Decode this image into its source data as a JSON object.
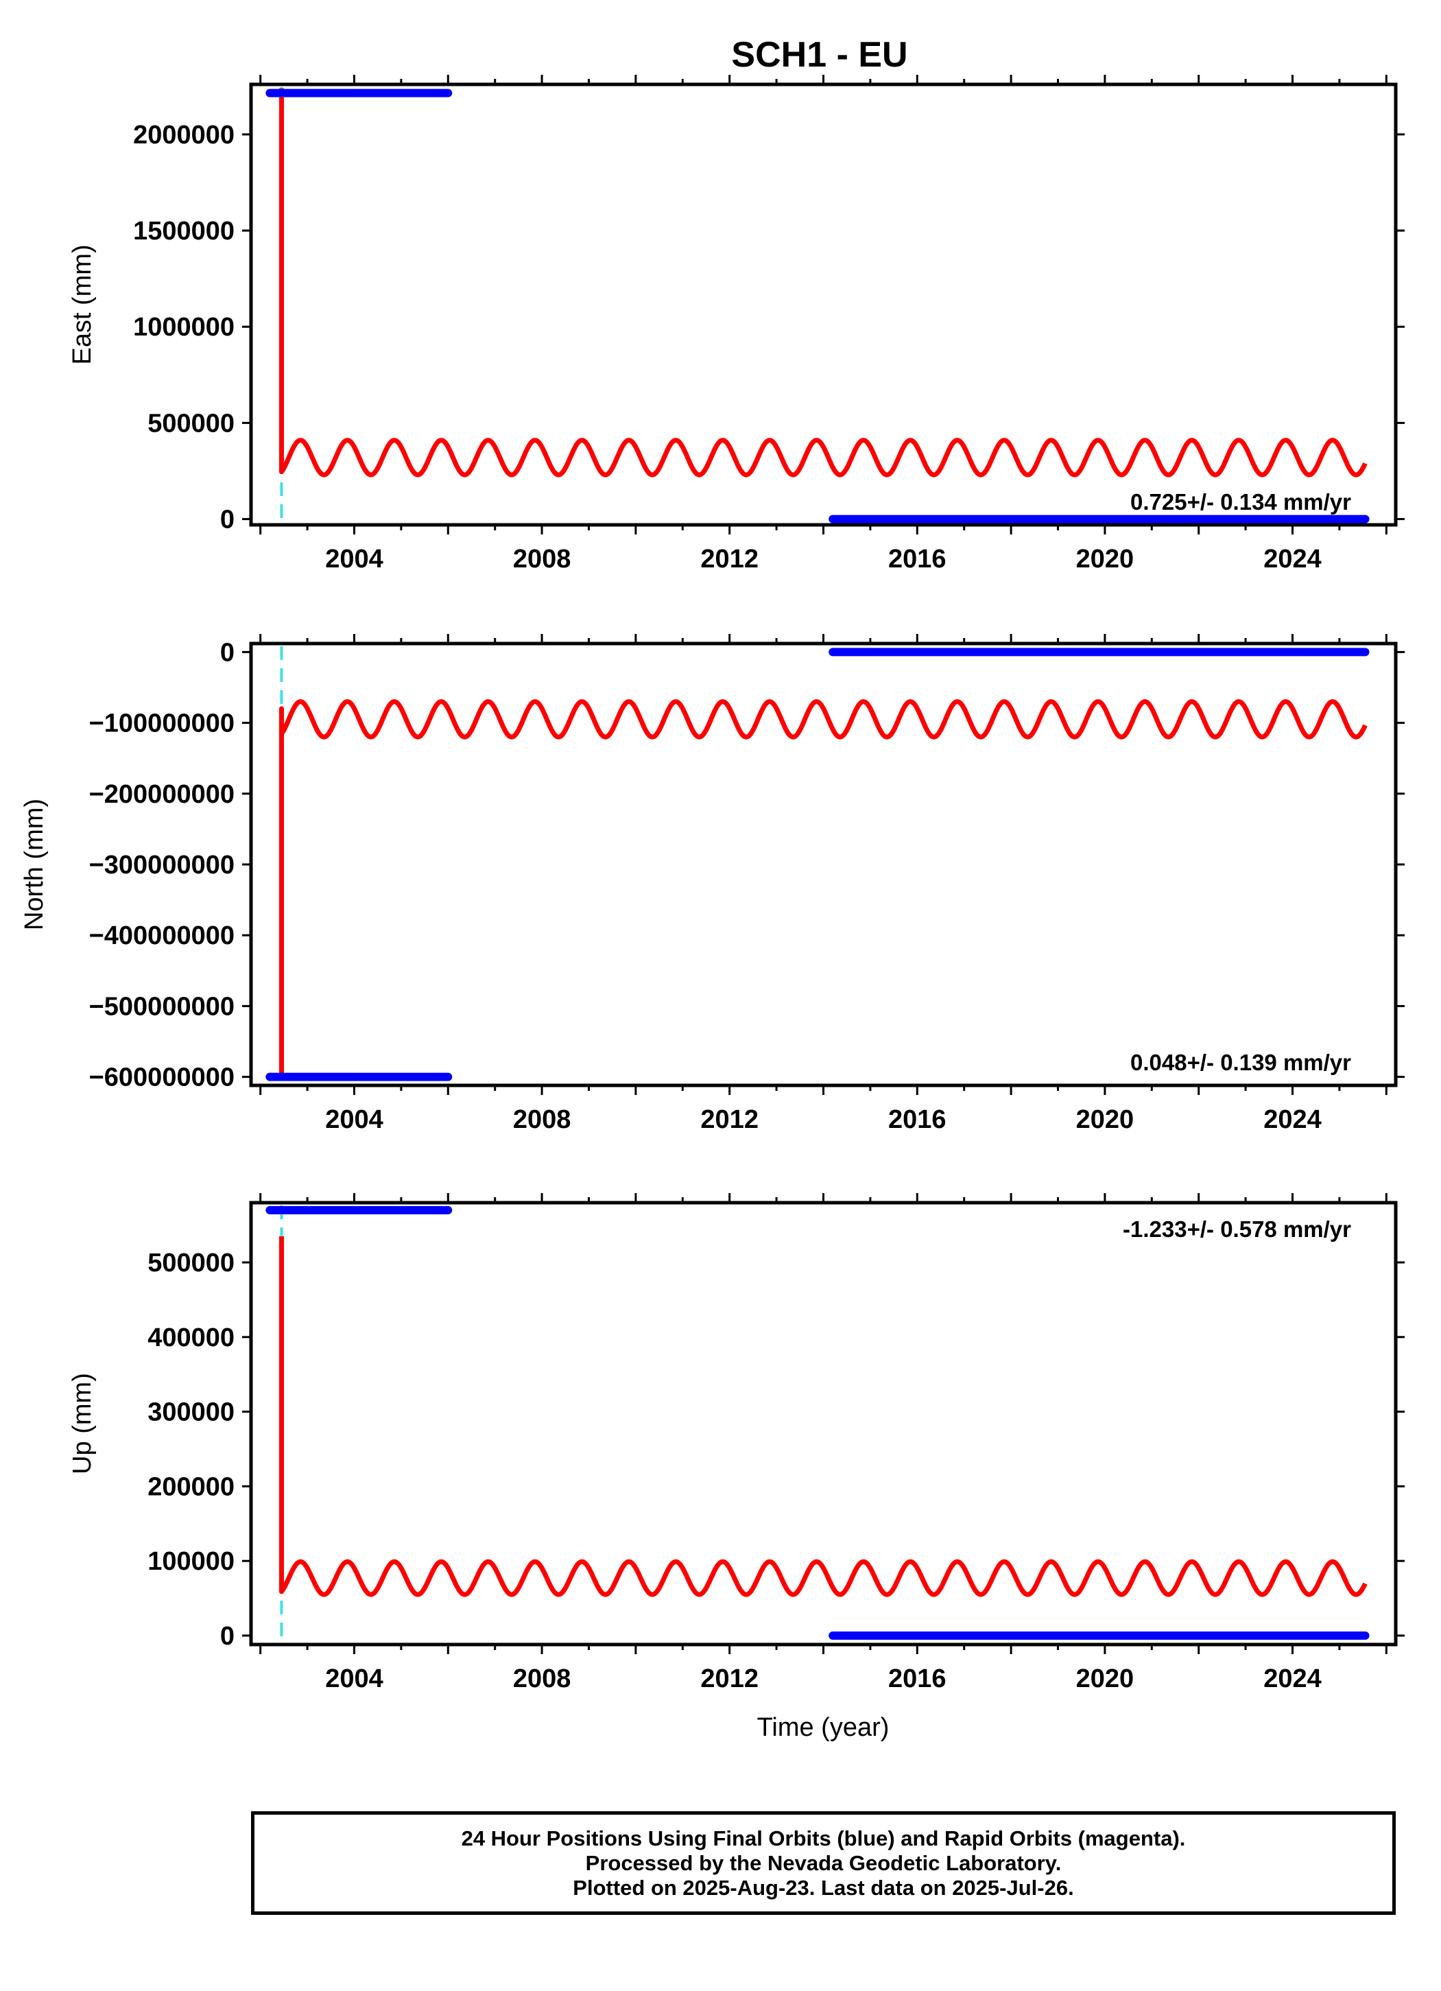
{
  "chart_data": {
    "title": "SCH1 - EU",
    "type": "scatter",
    "xlabel": "Time (year)",
    "xlim": [
      2001.8,
      2026.2
    ],
    "xticks": [
      2004,
      2008,
      2012,
      2016,
      2020,
      2024
    ],
    "series_colors": {
      "final": "#0000ff",
      "model": "#ff0000",
      "event": "#40e0e0"
    },
    "event_line_x": 2002.45,
    "panels": [
      {
        "ylabel": "East (mm)",
        "ylim": [
          -30000,
          2260000
        ],
        "yticks": [
          0,
          500000,
          1000000,
          1500000,
          2000000
        ],
        "ytick_labels": [
          "0",
          "500000",
          "1000000",
          "1500000",
          "2000000"
        ],
        "rate": "0.725+/- 0.134 mm/yr",
        "rate_position": "bottom-right",
        "final_segments": [
          {
            "x": [
              2002.2,
              2006.0
            ],
            "y": 2215000
          },
          {
            "x": [
              2014.2,
              2025.55
            ],
            "y": 0
          }
        ],
        "model_curve": {
          "start": 2002.45,
          "end": 2025.55,
          "spike_y": 2240000,
          "spike_low_y": 270000,
          "mean": 320000,
          "amplitude": 90000
        }
      },
      {
        "ylabel": "North (mm)",
        "ylim": [
          -612000000,
          12000000
        ],
        "yticks": [
          0,
          -100000000,
          -200000000,
          -300000000,
          -400000000,
          -500000000,
          -600000000
        ],
        "ytick_labels": [
          "0",
          "−100000000",
          "−200000000",
          "−300000000",
          "−400000000",
          "−500000000",
          "−600000000"
        ],
        "rate": "0.048+/- 0.139 mm/yr",
        "rate_position": "bottom-right",
        "final_segments": [
          {
            "x": [
              2002.2,
              2006.0
            ],
            "y": -600000000
          },
          {
            "x": [
              2014.2,
              2025.55
            ],
            "y": 0
          }
        ],
        "model_curve": {
          "start": 2002.45,
          "end": 2025.55,
          "spike_y": -600000000,
          "spike_low_y": -80000000,
          "mean": -95000000,
          "amplitude": 25000000
        }
      },
      {
        "ylabel": "Up (mm)",
        "ylim": [
          -12000,
          580000
        ],
        "yticks": [
          0,
          100000,
          200000,
          300000,
          400000,
          500000
        ],
        "ytick_labels": [
          "0",
          "100000",
          "200000",
          "300000",
          "400000",
          "500000"
        ],
        "rate": "-1.233+/- 0.578 mm/yr",
        "rate_position": "top-right",
        "final_segments": [
          {
            "x": [
              2002.2,
              2006.0
            ],
            "y": 570000
          },
          {
            "x": [
              2014.2,
              2025.55
            ],
            "y": 0
          }
        ],
        "model_curve": {
          "start": 2002.45,
          "end": 2025.55,
          "spike_y": 535000,
          "spike_low_y": 65000,
          "mean": 77000,
          "amplitude": 22000
        }
      }
    ]
  },
  "footer": {
    "line1": "24 Hour Positions Using Final Orbits (blue) and Rapid Orbits (magenta).",
    "line2": "Processed by the Nevada Geodetic Laboratory.",
    "line3": "Plotted on 2025-Aug-23. Last data on 2025-Jul-26."
  }
}
